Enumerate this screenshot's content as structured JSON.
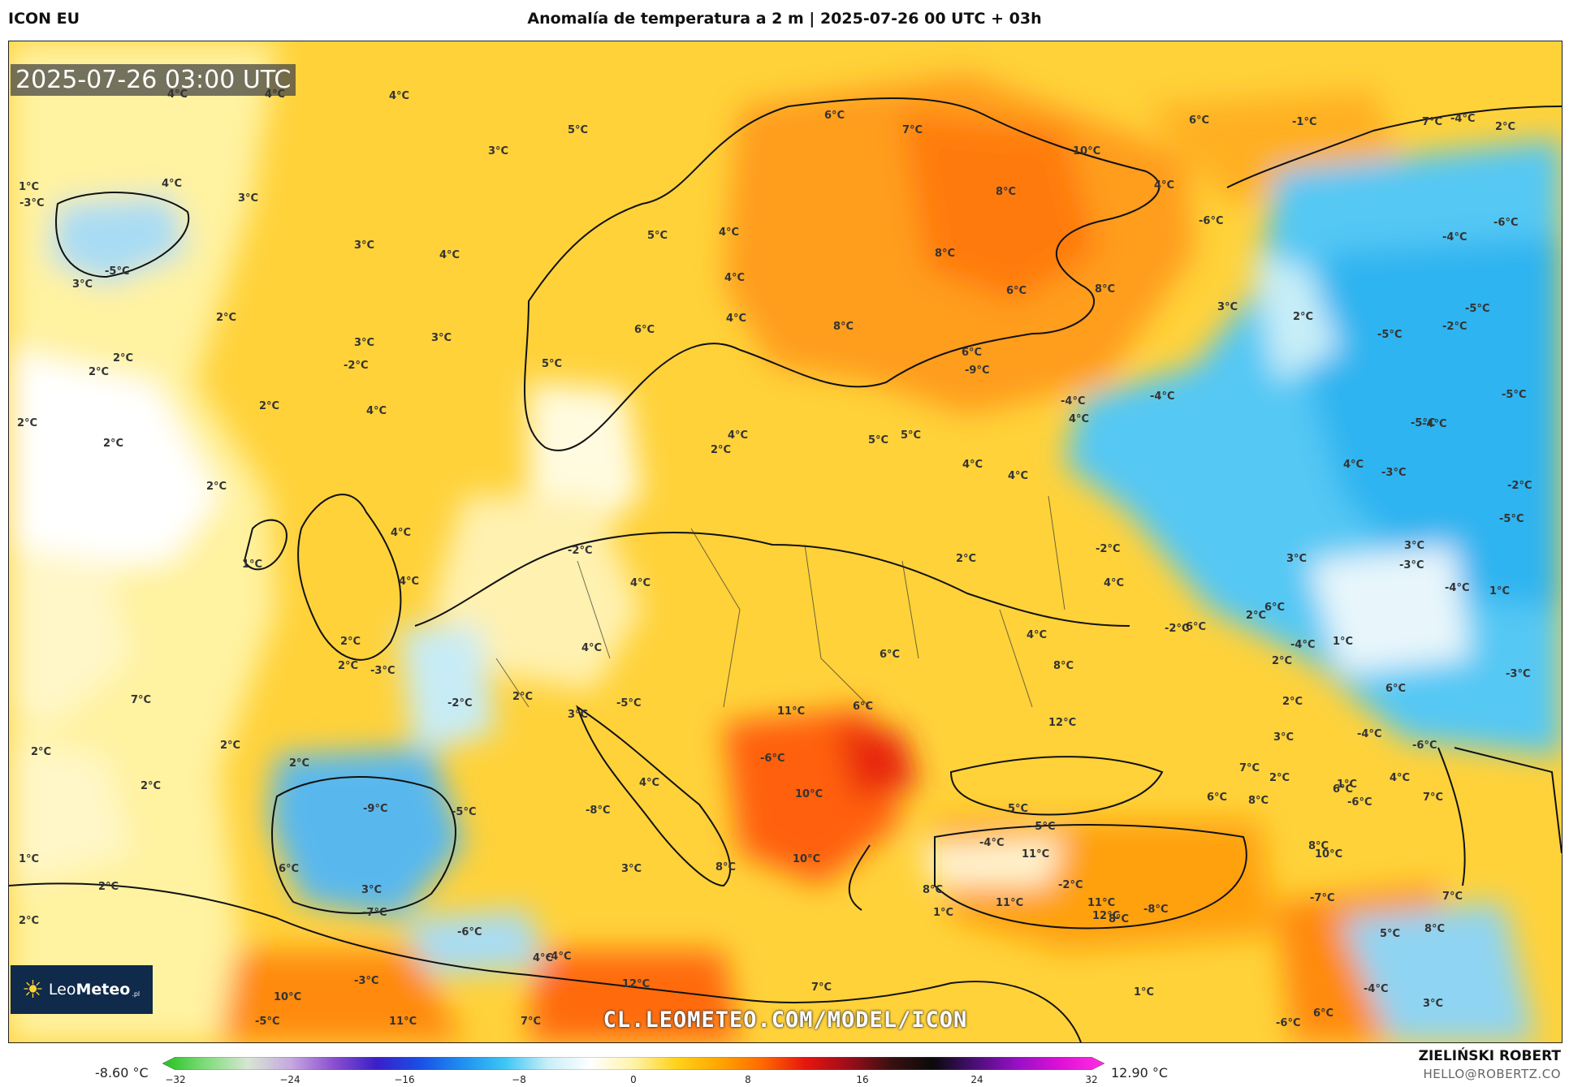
{
  "header": {
    "model": "ICON EU",
    "title": "Anomalía de temperatura a 2 m | 2025-07-26 00 UTC + 03h"
  },
  "map": {
    "timestamp": "2025-07-26 03:00 UTC",
    "watermark_url": "CL.LEOMETEO.COM/MODEL/ICON",
    "logo_text_light": "Leo",
    "logo_text_bold": "Meteo",
    "logo_suffix": ".pl",
    "labels": [
      {
        "text": "4°C"
      },
      {
        "text": "4°C"
      },
      {
        "text": "4°C"
      },
      {
        "text": "5°C"
      },
      {
        "text": "3°C"
      },
      {
        "text": "1°C"
      },
      {
        "text": "4°C"
      },
      {
        "text": "3°C"
      },
      {
        "text": "-3°C"
      },
      {
        "text": "-5°C"
      },
      {
        "text": "3°C"
      },
      {
        "text": "3°C"
      },
      {
        "text": "4°C"
      },
      {
        "text": "2°C"
      },
      {
        "text": "2°C"
      },
      {
        "text": "3°C"
      },
      {
        "text": "3°C"
      },
      {
        "text": "2°C"
      },
      {
        "text": "2°C"
      },
      {
        "text": "2°C"
      },
      {
        "text": "2°C"
      },
      {
        "text": "2°C"
      },
      {
        "text": "-2°C"
      },
      {
        "text": "4°C"
      },
      {
        "text": "1°C"
      },
      {
        "text": "4°C"
      },
      {
        "text": "4°C"
      },
      {
        "text": "-2°C"
      },
      {
        "text": "4°C"
      },
      {
        "text": "4°C"
      },
      {
        "text": "2°C"
      },
      {
        "text": "-3°C"
      },
      {
        "text": "2°C"
      },
      {
        "text": "-2°C"
      },
      {
        "text": "2°C"
      },
      {
        "text": "3°C"
      },
      {
        "text": "-5°C"
      },
      {
        "text": "7°C"
      },
      {
        "text": "2°C"
      },
      {
        "text": "2°C"
      },
      {
        "text": "2°C"
      },
      {
        "text": "2°C"
      },
      {
        "text": "-9°C"
      },
      {
        "text": "-5°C"
      },
      {
        "text": "-8°C"
      },
      {
        "text": "4°C"
      },
      {
        "text": "1°C"
      },
      {
        "text": "6°C"
      },
      {
        "text": "3°C"
      },
      {
        "text": "-7°C"
      },
      {
        "text": "2°C"
      },
      {
        "text": "2°C"
      },
      {
        "text": "-6°C"
      },
      {
        "text": "-4°C"
      },
      {
        "text": "4°C"
      },
      {
        "text": "-3°C"
      },
      {
        "text": "10°C"
      },
      {
        "text": "-5°C"
      },
      {
        "text": "11°C"
      },
      {
        "text": "7°C"
      },
      {
        "text": "12°C"
      },
      {
        "text": "7°C"
      },
      {
        "text": "8°C"
      },
      {
        "text": "10°C"
      },
      {
        "text": "3°C"
      },
      {
        "text": "8°C"
      },
      {
        "text": "11°C"
      },
      {
        "text": "-6°C"
      },
      {
        "text": "6°C"
      },
      {
        "text": "6°C"
      },
      {
        "text": "7°C"
      },
      {
        "text": "10°C"
      },
      {
        "text": "8°C"
      },
      {
        "text": "4°C"
      },
      {
        "text": "5°C"
      },
      {
        "text": "4°C"
      },
      {
        "text": "4°C"
      },
      {
        "text": "8°C"
      },
      {
        "text": "6°C"
      },
      {
        "text": "8°C"
      },
      {
        "text": "8°C"
      },
      {
        "text": "6°C"
      },
      {
        "text": "-9°C"
      },
      {
        "text": "6°C"
      },
      {
        "text": "5°C"
      },
      {
        "text": "4°C"
      },
      {
        "text": "5°C"
      },
      {
        "text": "5°C"
      },
      {
        "text": "2°C"
      },
      {
        "text": "4°C"
      },
      {
        "text": "4°C"
      },
      {
        "text": "2°C"
      },
      {
        "text": "4°C"
      },
      {
        "text": "4°C"
      },
      {
        "text": "6°C"
      },
      {
        "text": "8°C"
      },
      {
        "text": "12°C"
      },
      {
        "text": "6°C"
      },
      {
        "text": "11°C"
      },
      {
        "text": "-6°C"
      },
      {
        "text": "10°C"
      },
      {
        "text": "1°C"
      },
      {
        "text": "-4°C"
      },
      {
        "text": "5°C"
      },
      {
        "text": "-5°C"
      },
      {
        "text": "11°C"
      },
      {
        "text": "-2°C"
      },
      {
        "text": "11°C"
      },
      {
        "text": "12°C"
      },
      {
        "text": "8°C"
      },
      {
        "text": "-8°C"
      },
      {
        "text": "1°C"
      },
      {
        "text": "2°C"
      },
      {
        "text": "2°C"
      },
      {
        "text": "6°C"
      },
      {
        "text": "8°C"
      },
      {
        "text": "6°C"
      },
      {
        "text": "2°C"
      },
      {
        "text": "1°C"
      },
      {
        "text": "6°C"
      },
      {
        "text": "8°C"
      },
      {
        "text": "6°C"
      },
      {
        "text": "7°C"
      },
      {
        "text": "2°C"
      },
      {
        "text": "-1°C"
      },
      {
        "text": "-4°C"
      },
      {
        "text": "4°C"
      },
      {
        "text": "-6°C"
      },
      {
        "text": "-4°C"
      },
      {
        "text": "-6°C"
      },
      {
        "text": "3°C"
      },
      {
        "text": "2°C"
      },
      {
        "text": "-2°C"
      },
      {
        "text": "-5°C"
      },
      {
        "text": "-5°C"
      },
      {
        "text": "-4°C"
      },
      {
        "text": "-4°C"
      },
      {
        "text": "4°C"
      },
      {
        "text": "-5°C"
      },
      {
        "text": "-5°C"
      },
      {
        "text": "-4°C"
      },
      {
        "text": "4°C"
      },
      {
        "text": "-3°C"
      },
      {
        "text": "-2°C"
      },
      {
        "text": "-5°C"
      },
      {
        "text": "3°C"
      },
      {
        "text": "-2°C"
      },
      {
        "text": "3°C"
      },
      {
        "text": "-3°C"
      },
      {
        "text": "-4°C"
      },
      {
        "text": "1°C"
      },
      {
        "text": "2°C"
      },
      {
        "text": "-2°C"
      },
      {
        "text": "6°C"
      },
      {
        "text": "-4°C"
      },
      {
        "text": "1°C"
      },
      {
        "text": "-3°C"
      },
      {
        "text": "6°C"
      },
      {
        "text": "3°C"
      },
      {
        "text": "7°C"
      },
      {
        "text": "-4°C"
      },
      {
        "text": "-6°C"
      },
      {
        "text": "4°C"
      },
      {
        "text": "7°C"
      },
      {
        "text": "-6°C"
      },
      {
        "text": "10°C"
      },
      {
        "text": "-7°C"
      },
      {
        "text": "5°C"
      },
      {
        "text": "7°C"
      },
      {
        "text": "8°C"
      },
      {
        "text": "-4°C"
      },
      {
        "text": "3°C"
      }
    ]
  },
  "colorbar": {
    "min_label": "-8.60 °C",
    "max_label": "12.90 °C",
    "ticks": [
      "−32",
      "−24",
      "−16",
      "−8",
      "0",
      "8",
      "16",
      "24",
      "32"
    ],
    "stops": [
      "#22c21e",
      "#7fdc7a",
      "#d6e6d2",
      "#c6a8e0",
      "#8a4fd0",
      "#3a1fc8",
      "#1a4ee6",
      "#1f8ff0",
      "#3cc6f4",
      "#c8eef8",
      "#ffffff",
      "#fff3a8",
      "#ffd21a",
      "#ffa600",
      "#ff6a00",
      "#e8160e",
      "#a00d1a",
      "#3a1010",
      "#0a0a0a",
      "#4b0f7a",
      "#9a10c8",
      "#e010d8",
      "#ff30e0"
    ]
  },
  "footer": {
    "author": "ZIELIŃSKI ROBERT",
    "email": "HELLO@ROBERTZ.CO"
  }
}
